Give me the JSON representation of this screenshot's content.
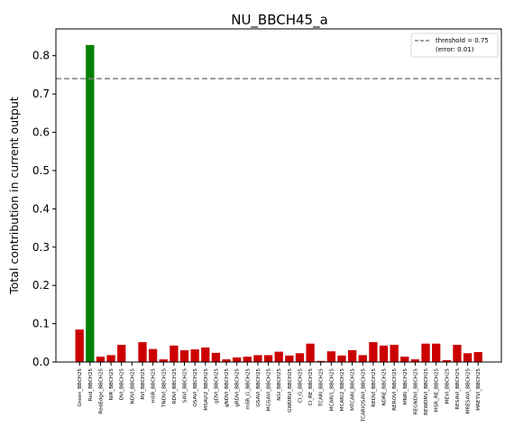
{
  "chart_data": {
    "type": "bar",
    "title": "NU_BBCH45_a",
    "xlabel": "",
    "ylabel": "Total contribution in current output",
    "ylim": [
      0,
      0.87
    ],
    "yticks": [
      "0.0",
      "0.1",
      "0.2",
      "0.3",
      "0.4",
      "0.5",
      "0.6",
      "0.7",
      "0.8"
    ],
    "grid": false,
    "threshold": {
      "value": 0.74,
      "label_line1": "threshold = 0.75",
      "label_line2": "(error: 0.01)",
      "color": "#808080"
    },
    "legend_position": "top-right",
    "colors": {
      "default": "#cc0000",
      "highlight": "#008000"
    },
    "highlight_index": 1,
    "categories": [
      "Green_BBCH25",
      "Red_BBCH25",
      "RedEdge_BBCH25",
      "NIR_BBCH25",
      "DVI_BBCH25",
      "NDVI_BBCH25",
      "RVI_BBCH25",
      "mSR_BBCH25",
      "TNDVI_BBCH25",
      "RDVI_BBCH25",
      "SAVI_BBCH25",
      "OSAVI_BBCH25",
      "MSAVI2_BBCH25",
      "gDVI_BBCH25",
      "gNDVI_BBCH25",
      "gRDVI_BBCH25",
      "mSR_G_BBCH25",
      "GSAVI_BBCH25",
      "MGSAVI_BBCH25",
      "NGI_BBCH25",
      "GWDRVI_BBCH25",
      "CI_G_BBCH25",
      "CI_RE_BBCH25",
      "TCARI_BBCH25",
      "MCARI1_BBCH25",
      "MCARI2_BBCH25",
      "MTCARI_BBCH25",
      "TCARIOSAVI_BBCH25",
      "REDVI_BBCH25",
      "NDRE_BBCH25",
      "REROVI_BBCH25",
      "MNRI_BBCH25",
      "REGNDVI_BBCH25",
      "REWDRVI_BBCH25",
      "MSR_RE_BBCH25",
      "MEVI_BBCH25",
      "RESAVI_BBCH25",
      "MRESAVI_BBCH25",
      "MRETVI_BBCH25"
    ],
    "values": [
      0.085,
      0.828,
      0.014,
      0.018,
      0.045,
      0.001,
      0.052,
      0.034,
      0.007,
      0.043,
      0.031,
      0.033,
      0.038,
      0.024,
      0.007,
      0.012,
      0.014,
      0.018,
      0.018,
      0.027,
      0.017,
      0.023,
      0.048,
      0.003,
      0.028,
      0.017,
      0.031,
      0.018,
      0.052,
      0.043,
      0.045,
      0.014,
      0.007,
      0.048,
      0.048,
      0.005,
      0.045,
      0.023,
      0.026
    ]
  }
}
